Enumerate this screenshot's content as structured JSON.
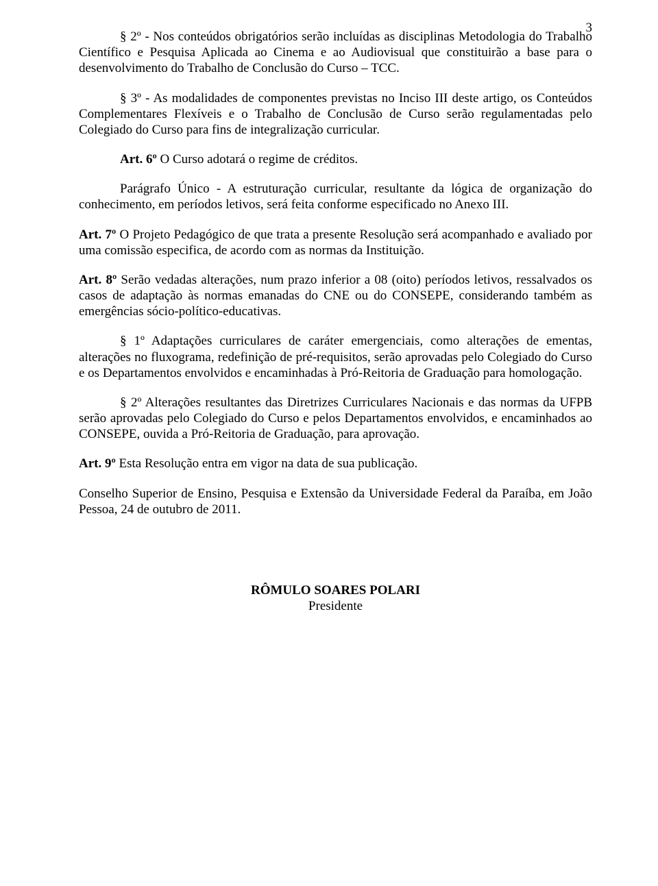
{
  "pageNumber": "3",
  "paragraphs": {
    "p1": "§ 2º - Nos conteúdos obrigatórios serão incluídas as disciplinas Metodologia do Trabalho Científico e Pesquisa Aplicada ao Cinema e ao Audiovisual que constituirão a base para o desenvolvimento do Trabalho de Conclusão do Curso – TCC.",
    "p2": "§ 3º - As modalidades de componentes previstas no Inciso III deste artigo, os Conteúdos Complementares Flexíveis e o Trabalho de Conclusão de Curso serão regulamentadas pelo Colegiado do Curso para fins de integralização curricular.",
    "art6_label": "Art. 6º",
    "art6_text": " O Curso adotará o regime de créditos.",
    "p4": "Parágrafo Único - A estruturação curricular, resultante da lógica de organização do conhecimento, em períodos letivos, será feita conforme especificado no Anexo III.",
    "art7_label": "Art. 7º",
    "art7_text": " O Projeto Pedagógico de que trata a presente Resolução será acompanhado e avaliado por uma comissão especifica, de acordo com as normas da Instituição.",
    "art8_label": "Art. 8º",
    "art8_text": " Serão vedadas alterações, num prazo inferior a 08 (oito) períodos letivos, ressalvados os casos de adaptação às normas emanadas do CNE ou do CONSEPE, considerando também as emergências sócio-político-educativas.",
    "p7": "§ 1º Adaptações curriculares de caráter emergenciais, como alterações de ementas, alterações no fluxograma, redefinição de pré-requisitos, serão aprovadas pelo Colegiado do Curso e os Departamentos envolvidos e encaminhadas à Pró-Reitoria de Graduação para homologação.",
    "p8": "§ 2º Alterações resultantes das Diretrizes Curriculares Nacionais e das normas da UFPB serão aprovadas pelo Colegiado do Curso e pelos Departamentos envolvidos, e encaminhados ao CONSEPE, ouvida a Pró-Reitoria de Graduação, para aprovação.",
    "art9_label": "Art. 9º",
    "art9_text": " Esta Resolução entra em vigor na data de sua publicação.",
    "p10": "Conselho Superior de Ensino, Pesquisa e Extensão da Universidade Federal da Paraíba, em João Pessoa, 24 de outubro de 2011."
  },
  "signature": {
    "name": "RÔMULO SOARES POLARI",
    "title": "Presidente"
  },
  "style": {
    "fontFamily": "Times New Roman",
    "fontSizePt": 14,
    "textColor": "#000000",
    "backgroundColor": "#ffffff",
    "pageWidth": 960,
    "pageHeight": 1293,
    "textAlign": "justify",
    "indentPx": 60
  }
}
